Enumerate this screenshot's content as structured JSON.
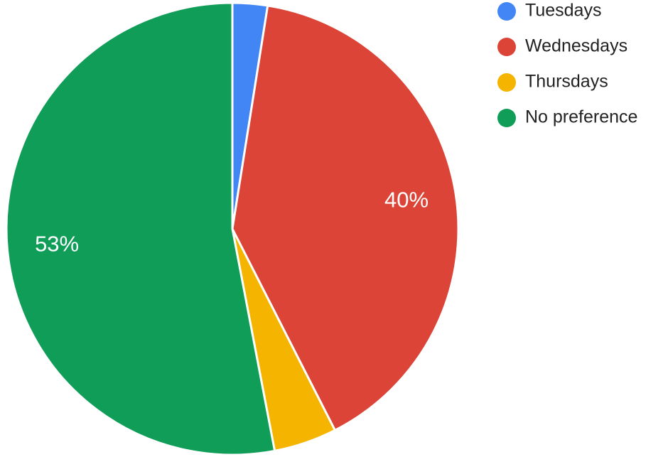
{
  "chart_data": {
    "type": "pie",
    "slices": [
      {
        "name": "Tuesdays",
        "value": 2.5,
        "label": "",
        "color": "#4285f4"
      },
      {
        "name": "Wednesdays",
        "value": 40,
        "label": "40%",
        "color": "#db4437"
      },
      {
        "name": "Thursdays",
        "value": 4.5,
        "label": "",
        "color": "#f4b400"
      },
      {
        "name": "No preference",
        "value": 53,
        "label": "53%",
        "color": "#0f9d58"
      }
    ],
    "legend": {
      "placement": "top-right",
      "entries": [
        "Tuesdays",
        "Wednesdays",
        "Thursdays",
        "No preference"
      ]
    }
  }
}
